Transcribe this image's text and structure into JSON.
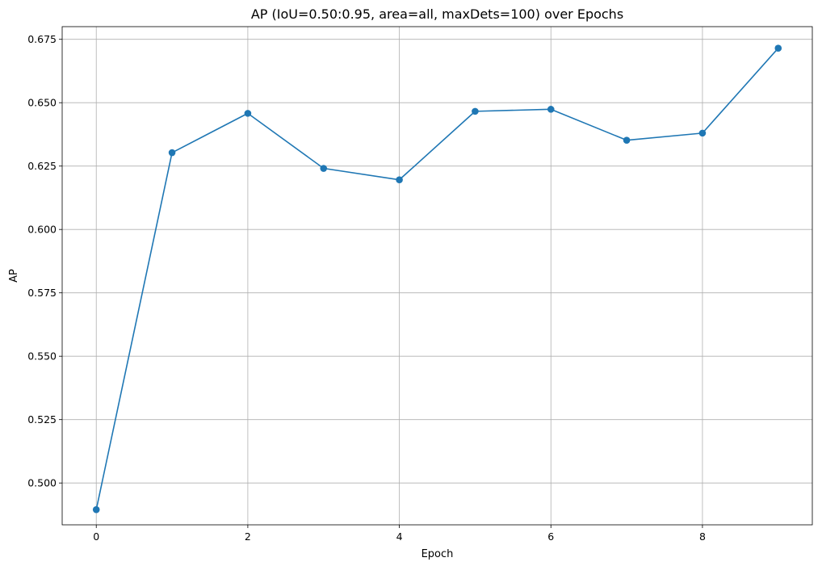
{
  "chart_data": {
    "type": "line",
    "title": "AP (IoU=0.50:0.95, area=all, maxDets=100) over Epochs",
    "xlabel": "Epoch",
    "ylabel": "AP",
    "xlim": [
      -0.45,
      9.45
    ],
    "ylim": [
      0.4835,
      0.68
    ],
    "xticks": [
      0,
      2,
      4,
      6,
      8
    ],
    "xtick_labels": [
      "0",
      "2",
      "4",
      "6",
      "8"
    ],
    "yticks": [
      0.5,
      0.525,
      0.55,
      0.575,
      0.6,
      0.625,
      0.65,
      0.675
    ],
    "ytick_labels": [
      "0.500",
      "0.525",
      "0.550",
      "0.575",
      "0.600",
      "0.625",
      "0.650",
      "0.675"
    ],
    "grid": true,
    "series": [
      {
        "color": "#1f77b4",
        "marker": "circle",
        "x": [
          0,
          1,
          2,
          3,
          4,
          5,
          6,
          7,
          8,
          9
        ],
        "y": [
          0.4895,
          0.6303,
          0.6458,
          0.6241,
          0.6196,
          0.6466,
          0.6474,
          0.6352,
          0.638,
          0.6715
        ]
      }
    ]
  }
}
